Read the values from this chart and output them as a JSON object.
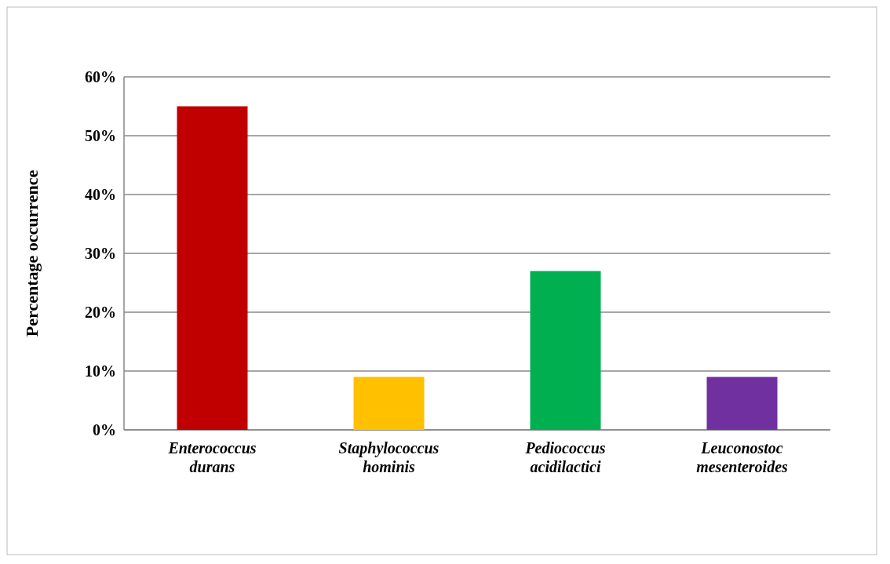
{
  "chart_data": {
    "type": "bar",
    "ylabel": "Percentage occurrence",
    "categories": [
      "Enterococcus durans",
      "Staphylococcus hominis",
      "Pediococcus acidilactici",
      "Leuconostoc mesenteroides"
    ],
    "values": [
      55,
      9,
      27,
      9
    ],
    "colors": [
      "#c00000",
      "#ffc000",
      "#00b050",
      "#7030a0"
    ],
    "ylim": [
      0,
      60
    ],
    "yticks": [
      {
        "value": 0,
        "label": "0%"
      },
      {
        "value": 10,
        "label": "10%"
      },
      {
        "value": 20,
        "label": "20%"
      },
      {
        "value": 30,
        "label": "30%"
      },
      {
        "value": 40,
        "label": "40%"
      },
      {
        "value": 50,
        "label": "50%"
      },
      {
        "value": 60,
        "label": "60%"
      }
    ],
    "grid": "y"
  }
}
